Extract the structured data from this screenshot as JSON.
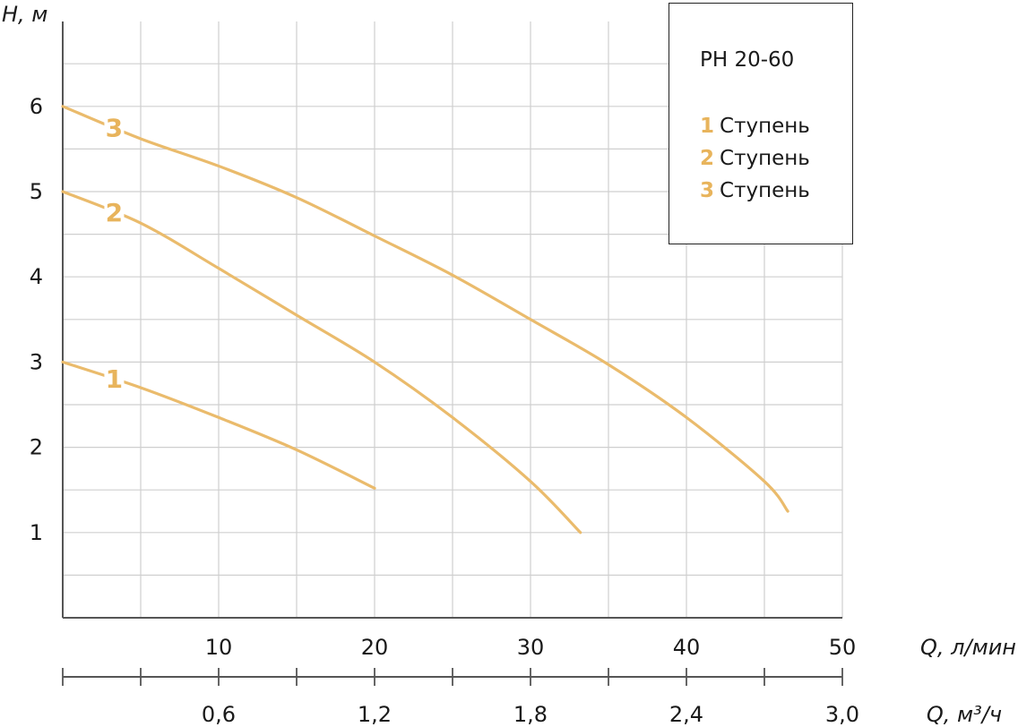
{
  "chart_data": {
    "type": "line",
    "y_axis_label": "H, м",
    "x_axis_label": "Q, л/мин",
    "x2_axis_label": "Q, м³/ч",
    "xlim": [
      0,
      50
    ],
    "ylim": [
      0,
      7
    ],
    "x_ticks": [
      "10",
      "20",
      "30",
      "40",
      "50"
    ],
    "x2_ticks": [
      "0,6",
      "1,2",
      "1,8",
      "2,4",
      "3,0"
    ],
    "y_ticks": [
      "1",
      "2",
      "3",
      "4",
      "5",
      "6"
    ],
    "grid": true,
    "curve_color": "#eabb6c",
    "label_color": "#e8b45c",
    "series": [
      {
        "name": "1",
        "points": [
          [
            0,
            3.0
          ],
          [
            5,
            2.7
          ],
          [
            10,
            2.35
          ],
          [
            15,
            1.97
          ],
          [
            20,
            1.52
          ]
        ]
      },
      {
        "name": "2",
        "points": [
          [
            0,
            5.0
          ],
          [
            5,
            4.63
          ],
          [
            10,
            4.1
          ],
          [
            15,
            3.55
          ],
          [
            20,
            3.0
          ],
          [
            25,
            2.35
          ],
          [
            30,
            1.6
          ],
          [
            33.2,
            1.0
          ]
        ]
      },
      {
        "name": "3",
        "points": [
          [
            0,
            6.0
          ],
          [
            5,
            5.62
          ],
          [
            10,
            5.3
          ],
          [
            15,
            4.93
          ],
          [
            20,
            4.48
          ],
          [
            25,
            4.02
          ],
          [
            30,
            3.5
          ],
          [
            35,
            2.97
          ],
          [
            40,
            2.35
          ],
          [
            45,
            1.6
          ],
          [
            46.5,
            1.25
          ]
        ]
      }
    ]
  },
  "legend": {
    "title": "PH 20-60",
    "items": [
      {
        "num": "1",
        "label": "Ступень"
      },
      {
        "num": "2",
        "label": "Ступень"
      },
      {
        "num": "3",
        "label": "Ступень"
      }
    ]
  }
}
